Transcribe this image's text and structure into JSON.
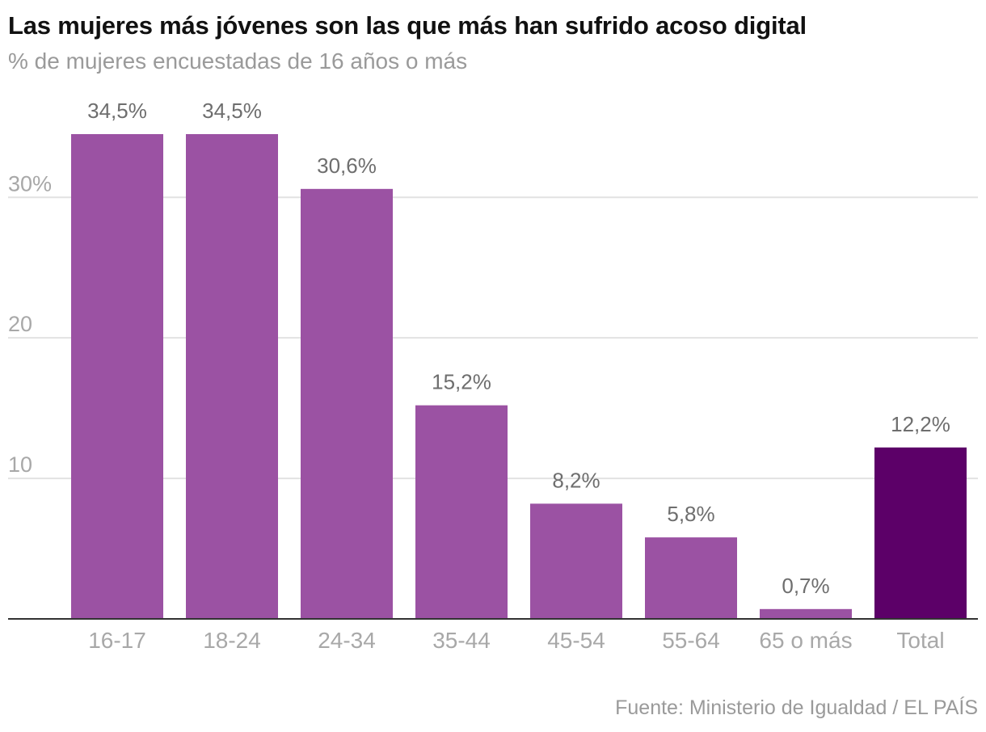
{
  "header": {
    "title": "Las mujeres más jóvenes son las que más han sufrido acoso digital",
    "subtitle": "% de mujeres encuestadas de 16 años o más"
  },
  "footer": {
    "source": "Fuente: Ministerio de Igualdad / EL PAÍS"
  },
  "colors": {
    "bar": "#9b52a3",
    "bar_highlight": "#5c0068",
    "grid": "#e2e2e2",
    "axis": "#333333",
    "tick_text": "#a8a8a8",
    "value_text": "#6e6e6e"
  },
  "chart_data": {
    "type": "bar",
    "title": "Las mujeres más jóvenes son las que más han sufrido acoso digital",
    "subtitle": "% de mujeres encuestadas de 16 años o más",
    "categories": [
      "16-17",
      "18-24",
      "24-34",
      "35-44",
      "45-54",
      "55-64",
      "65 o más",
      "Total"
    ],
    "values": [
      34.5,
      34.5,
      30.6,
      15.2,
      8.2,
      5.8,
      0.7,
      12.2
    ],
    "value_labels": [
      "34,5%",
      "34,5%",
      "30,6%",
      "15,2%",
      "8,2%",
      "5,8%",
      "0,7%",
      "12,2%"
    ],
    "highlight_category": "Total",
    "ylim": [
      0,
      34.5
    ],
    "yticks": [
      10,
      20,
      30
    ],
    "ytick_labels": [
      "10",
      "20",
      "30%"
    ],
    "xlabel": "",
    "ylabel": "",
    "grid": true,
    "legend": "none"
  }
}
